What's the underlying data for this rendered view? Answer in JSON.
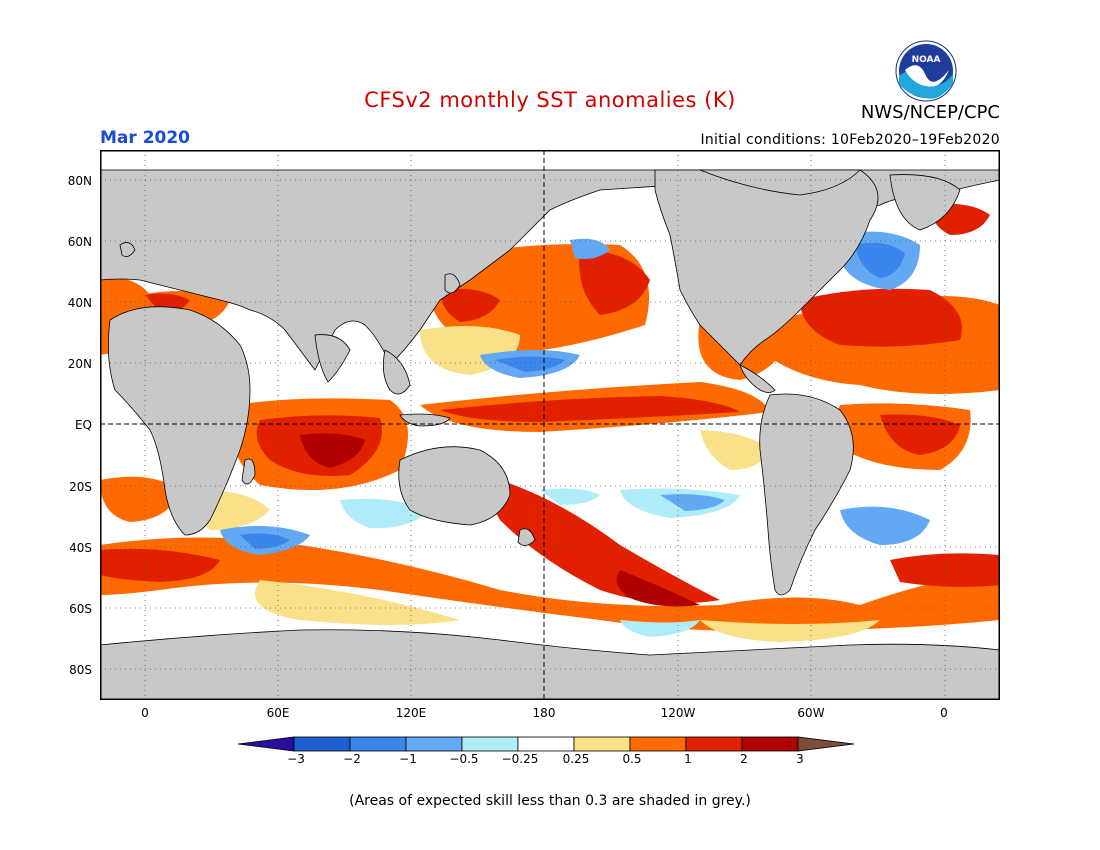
{
  "header": {
    "title": "CFSv2 monthly SST anomalies (K)",
    "organization": "NWS/NCEP/CPC",
    "month": "Mar 2020",
    "initial_conditions": "Initial conditions: 10Feb2020–19Feb2020",
    "logo_text": "NOAA"
  },
  "axes": {
    "lat_labels": [
      "80N",
      "60N",
      "40N",
      "20N",
      "EQ",
      "20S",
      "40S",
      "60S",
      "80S"
    ],
    "lon_labels": [
      "0",
      "60E",
      "120E",
      "180",
      "120W",
      "60W",
      "0"
    ]
  },
  "colorbar": {
    "ticks": [
      "−3",
      "−2",
      "−1",
      "−0.5",
      "−0.25",
      "0.25",
      "0.5",
      "1",
      "2",
      "3"
    ],
    "colors": [
      "#2a0ea0",
      "#1e5fd1",
      "#3a86ea",
      "#62a8f2",
      "#b0ecf7",
      "#ffffff",
      "#fbe08a",
      "#ff6a00",
      "#e12000",
      "#b00000",
      "#7b4d3a"
    ]
  },
  "colors": {
    "land": "#c8c8c8",
    "ocean_neutral": "#ffffff",
    "title": "#d40000",
    "month": "#1a4bd9"
  },
  "footnote": "(Areas of expected skill less than 0.3 are shaded in grey.)"
}
